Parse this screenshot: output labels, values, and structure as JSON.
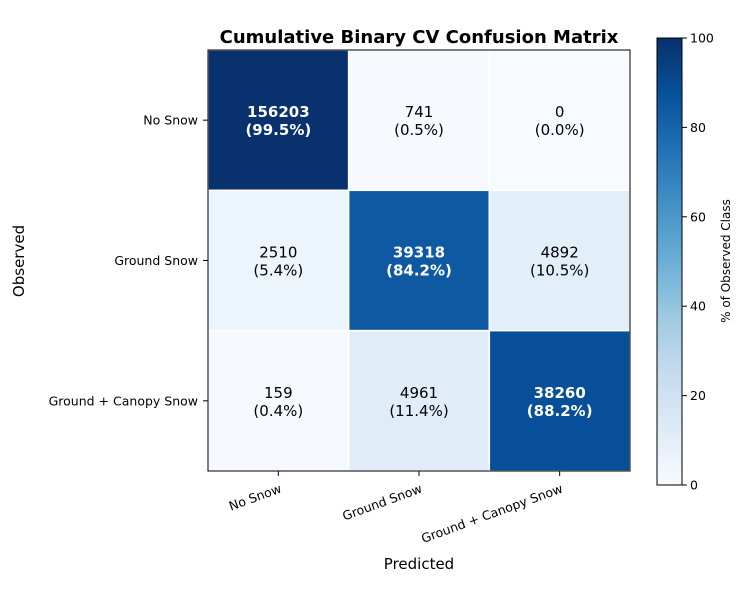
{
  "chart_data": {
    "type": "heatmap",
    "title": "Cumulative Binary CV Confusion Matrix",
    "xlabel": "Predicted",
    "ylabel": "Observed",
    "row_labels": [
      "No Snow",
      "Ground Snow",
      "Ground + Canopy Snow"
    ],
    "col_labels": [
      "No Snow",
      "Ground Snow",
      "Ground + Canopy Snow"
    ],
    "counts": [
      [
        156203,
        741,
        0
      ],
      [
        2510,
        39318,
        4892
      ],
      [
        159,
        4961,
        38260
      ]
    ],
    "percent_labels": [
      [
        "(99.5%)",
        "(0.5%)",
        "(0.0%)"
      ],
      [
        "(5.4%)",
        "(84.2%)",
        "(10.5%)"
      ],
      [
        "(0.4%)",
        "(11.4%)",
        "(88.2%)"
      ]
    ],
    "percents": [
      [
        99.5,
        0.5,
        0.0
      ],
      [
        5.4,
        84.2,
        10.5
      ],
      [
        0.4,
        11.4,
        88.2
      ]
    ],
    "colorbar": {
      "label": "% of Observed Class",
      "range": [
        0,
        100
      ],
      "ticks": [
        0,
        20,
        40,
        60,
        80,
        100
      ],
      "colormap": "Blues"
    },
    "bold_cells": "diagonal"
  }
}
